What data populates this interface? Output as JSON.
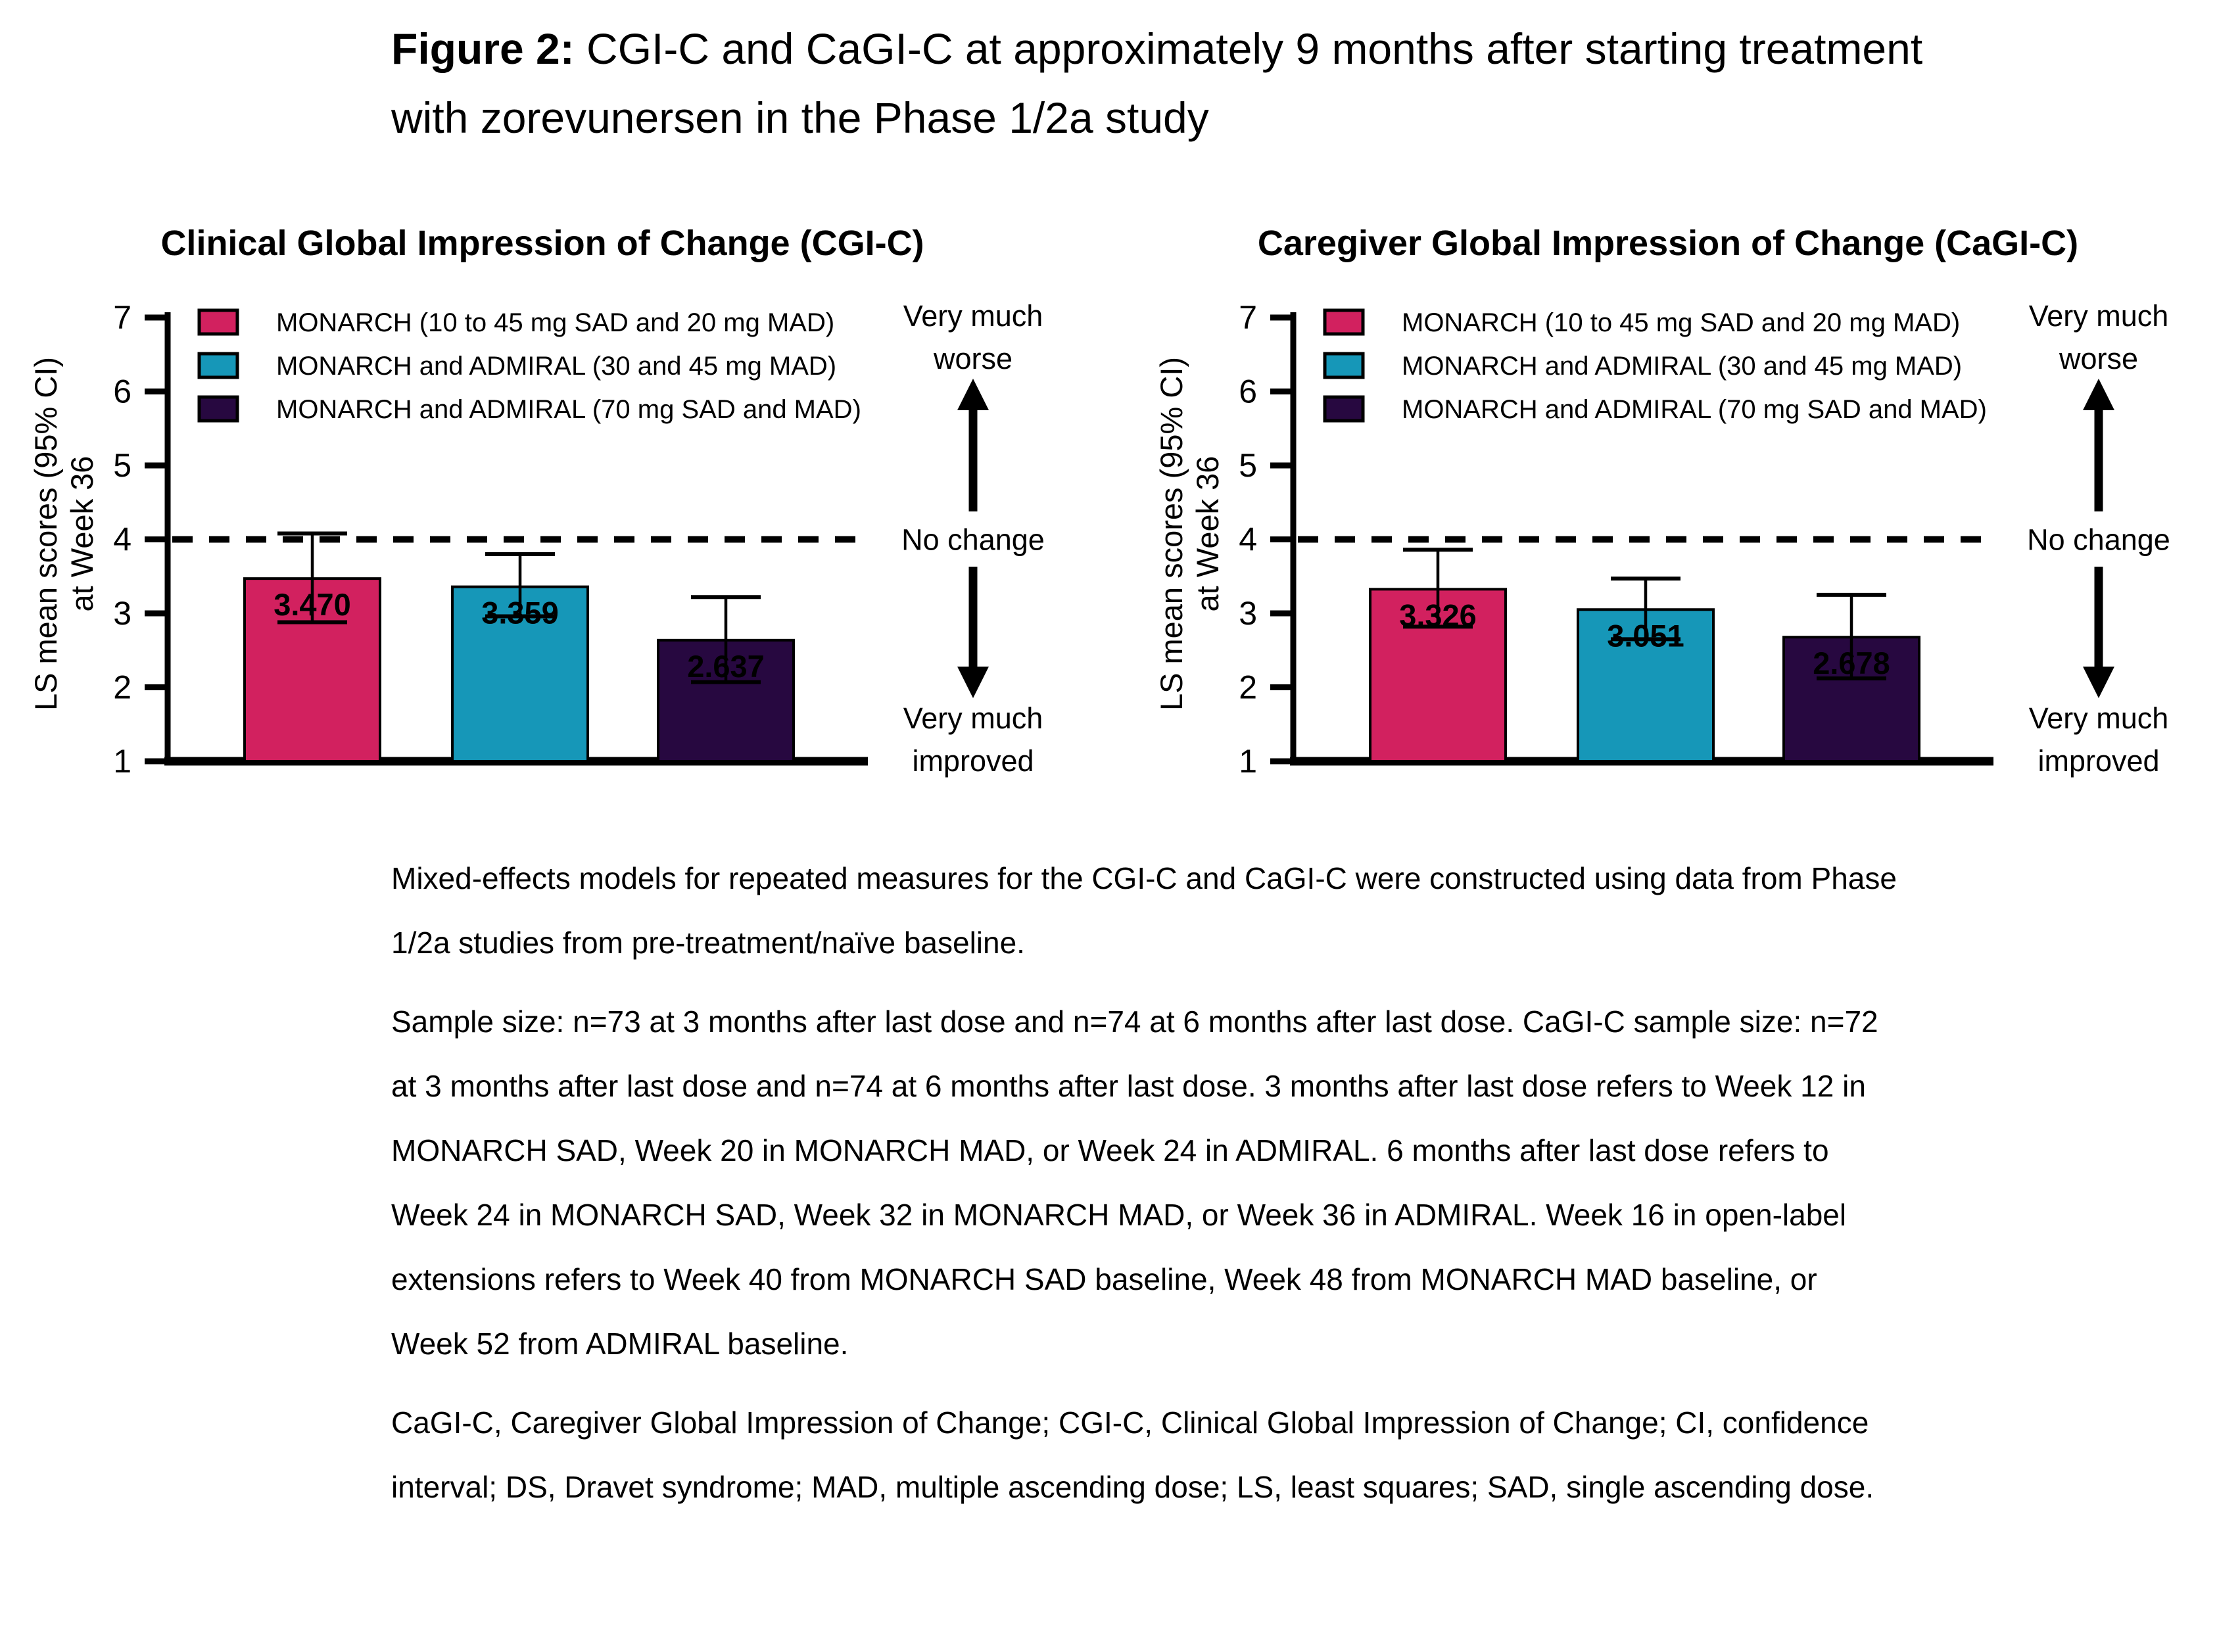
{
  "figure": {
    "label": "Figure 2:",
    "title": " CGI-C and CaGI-C at approximately 9 months after starting treatment with zorevunersen in the Phase 1/2a study"
  },
  "chart_data": [
    {
      "type": "bar",
      "title": "Clinical Global Impression of Change (CGI-C)",
      "ylabel": "LS mean scores (95% CI) at Week 36",
      "ylabel_line1": "LS mean scores (95% CI)",
      "ylabel_line2": "at Week 36",
      "ylim": [
        1,
        7
      ],
      "yticks": [
        1,
        2,
        3,
        4,
        5,
        6,
        7
      ],
      "reference_line": 4,
      "grid": false,
      "legend_position": "top-left inside plot",
      "legend": [
        {
          "label": "MONARCH (10 to 45 mg SAD and 20 mg MAD)",
          "color": "#D2215F"
        },
        {
          "label": "MONARCH and ADMIRAL (30 and 45 mg MAD)",
          "color": "#1697B8"
        },
        {
          "label": "MONARCH and ADMIRAL (70 mg SAD and MAD)",
          "color": "#270840"
        }
      ],
      "bars": [
        {
          "series": "MONARCH (10 to 45 mg SAD and 20 mg MAD)",
          "value": 3.47,
          "label": "3.470",
          "ci_low": 2.88,
          "ci_high": 4.08,
          "color": "#D2215F"
        },
        {
          "series": "MONARCH and ADMIRAL (30 and 45 mg MAD)",
          "value": 3.359,
          "label": "3.359",
          "ci_low": 2.96,
          "ci_high": 3.8,
          "color": "#1697B8"
        },
        {
          "series": "MONARCH and ADMIRAL (70 mg SAD and MAD)",
          "value": 2.637,
          "label": "2.637",
          "ci_low": 2.07,
          "ci_high": 3.22,
          "color": "#270840"
        }
      ],
      "annotations": {
        "worse_lines": [
          "Very much",
          "worse"
        ],
        "worse_color": "#FF0000",
        "no_change": "No change",
        "no_change_color": "#000000",
        "improved_lines": [
          "Very much",
          "improved"
        ],
        "improved_color": "#128412"
      }
    },
    {
      "type": "bar",
      "title": "Caregiver Global Impression of Change (CaGI-C)",
      "ylabel": "LS mean scores (95% CI) at Week 36",
      "ylabel_line1": "LS mean scores (95% CI)",
      "ylabel_line2": "at Week 36",
      "ylim": [
        1,
        7
      ],
      "yticks": [
        1,
        2,
        3,
        4,
        5,
        6,
        7
      ],
      "reference_line": 4,
      "grid": false,
      "legend_position": "top-left inside plot",
      "legend": [
        {
          "label": "MONARCH (10 to 45 mg SAD and 20 mg MAD)",
          "color": "#D2215F"
        },
        {
          "label": "MONARCH and ADMIRAL (30 and 45 mg MAD)",
          "color": "#1697B8"
        },
        {
          "label": "MONARCH and ADMIRAL (70 mg SAD and MAD)",
          "color": "#270840"
        }
      ],
      "bars": [
        {
          "series": "MONARCH (10 to 45 mg SAD and 20 mg MAD)",
          "value": 3.326,
          "label": "3.326",
          "ci_low": 2.82,
          "ci_high": 3.86,
          "color": "#D2215F"
        },
        {
          "series": "MONARCH and ADMIRAL (30 and 45 mg MAD)",
          "value": 3.051,
          "label": "3.051",
          "ci_low": 2.65,
          "ci_high": 3.47,
          "color": "#1697B8"
        },
        {
          "series": "MONARCH and ADMIRAL (70 mg SAD and MAD)",
          "value": 2.678,
          "label": "2.678",
          "ci_low": 2.12,
          "ci_high": 3.25,
          "color": "#270840"
        }
      ],
      "annotations": {
        "worse_lines": [
          "Very much",
          "worse"
        ],
        "worse_color": "#FF0000",
        "no_change": "No change",
        "no_change_color": "#000000",
        "improved_lines": [
          "Very much",
          "improved"
        ],
        "improved_color": "#128412"
      }
    }
  ],
  "footnotes": [
    "Mixed-effects models for repeated measures for the CGI-C and CaGI-C were constructed using data from Phase 1/2a studies from pre-treatment/naïve baseline.",
    "Sample size: n=73 at 3 months after last dose and n=74 at 6 months after last dose. CaGI-C sample size: n=72 at 3 months after last dose and n=74 at 6 months after last dose. 3 months after last dose refers to Week 12 in MONARCH SAD, Week 20 in MONARCH MAD, or Week 24 in ADMIRAL. 6 months after last dose refers to Week 24 in MONARCH SAD, Week 32 in MONARCH MAD, or Week 36 in ADMIRAL. Week 16 in open-label extensions refers to Week 40 from MONARCH SAD baseline, Week 48 from MONARCH MAD baseline, or Week 52 from ADMIRAL baseline.",
    "CaGI-C, Caregiver Global Impression of Change; CGI-C, Clinical Global Impression of Change; CI, confidence interval; DS, Dravet syndrome; MAD, multiple ascending dose; LS, least squares; SAD, single ascending dose."
  ]
}
